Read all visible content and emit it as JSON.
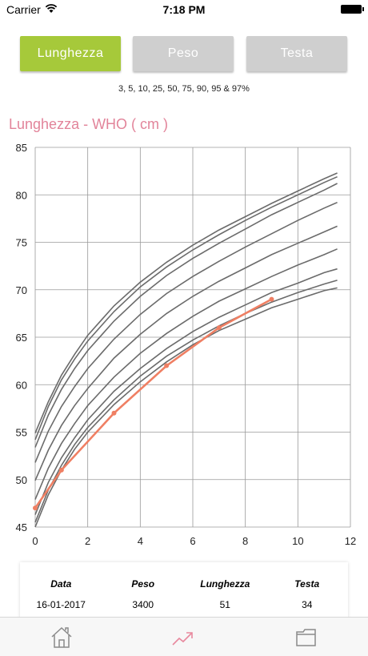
{
  "status": {
    "carrier": "Carrier",
    "time": "7:18 PM"
  },
  "tabs": [
    {
      "label": "Lunghezza",
      "active": true
    },
    {
      "label": "Peso",
      "active": false
    },
    {
      "label": "Testa",
      "active": false
    }
  ],
  "percentiles_text": "3, 5, 10, 25, 50, 75, 90, 95 & 97%",
  "chart_title": "Lunghezza - WHO ( cm )",
  "colors": {
    "accent": "#a6c93a",
    "title": "#e2849a",
    "measure": "#ef7f63",
    "curves": "#6b6b6b",
    "inactive_tab": "#cfcfcf"
  },
  "chart_data": {
    "type": "line",
    "title": "Lunghezza - WHO ( cm )",
    "xlabel": "",
    "ylabel": "",
    "xlim": [
      0,
      12
    ],
    "ylim": [
      45,
      85
    ],
    "x_ticks": [
      0,
      2,
      4,
      6,
      8,
      10,
      12
    ],
    "y_ticks": [
      45,
      50,
      55,
      60,
      65,
      70,
      75,
      80,
      85
    ],
    "grid": true,
    "percentile_x": [
      0,
      0.5,
      1,
      1.5,
      2,
      3,
      4,
      5,
      6,
      7,
      8,
      9,
      10,
      11,
      11.5
    ],
    "percentile_series": [
      {
        "name": "3%",
        "values": [
          45.0,
          48.4,
          51.0,
          53.2,
          55.0,
          57.9,
          60.3,
          62.4,
          64.2,
          65.7,
          66.9,
          68.1,
          69.0,
          69.9,
          70.2
        ]
      },
      {
        "name": "5%",
        "values": [
          45.5,
          48.9,
          51.5,
          53.7,
          55.5,
          58.4,
          60.9,
          63.0,
          64.7,
          66.2,
          67.5,
          68.7,
          69.7,
          70.6,
          71.0
        ]
      },
      {
        "name": "10%",
        "values": [
          46.3,
          49.7,
          52.3,
          54.4,
          56.3,
          59.3,
          61.7,
          63.8,
          65.6,
          67.1,
          68.4,
          69.7,
          70.7,
          71.8,
          72.2
        ]
      },
      {
        "name": "25%",
        "values": [
          47.9,
          51.2,
          53.8,
          55.9,
          57.8,
          60.8,
          63.3,
          65.4,
          67.2,
          68.8,
          70.1,
          71.4,
          72.6,
          73.7,
          74.3
        ]
      },
      {
        "name": "50%",
        "values": [
          49.9,
          53.1,
          55.7,
          57.8,
          59.6,
          62.8,
          65.3,
          67.5,
          69.3,
          70.9,
          72.3,
          73.7,
          74.9,
          76.1,
          76.7
        ]
      },
      {
        "name": "75%",
        "values": [
          51.8,
          55.1,
          57.7,
          59.8,
          61.7,
          64.8,
          67.4,
          69.6,
          71.4,
          73.0,
          74.5,
          75.9,
          77.3,
          78.6,
          79.2
        ]
      },
      {
        "name": "90%",
        "values": [
          53.4,
          56.8,
          59.5,
          61.7,
          63.6,
          66.7,
          69.3,
          71.5,
          73.3,
          74.9,
          76.4,
          77.9,
          79.2,
          80.5,
          81.2
        ]
      },
      {
        "name": "95%",
        "values": [
          54.2,
          57.7,
          60.5,
          62.7,
          64.6,
          67.7,
          70.3,
          72.4,
          74.2,
          75.8,
          77.3,
          78.7,
          80.0,
          81.3,
          81.9
        ]
      },
      {
        "name": "97%",
        "values": [
          54.9,
          58.2,
          61.0,
          63.2,
          65.2,
          68.3,
          70.8,
          72.9,
          74.7,
          76.3,
          77.7,
          79.1,
          80.4,
          81.7,
          82.3
        ]
      }
    ],
    "measurements": {
      "x": [
        0,
        1,
        3,
        5,
        7,
        9
      ],
      "values": [
        47,
        51,
        57,
        62,
        66,
        69
      ]
    }
  },
  "table": {
    "headers": [
      "Data",
      "Peso",
      "Lunghezza",
      "Testa"
    ],
    "row": [
      "16-01-2017",
      "3400",
      "51",
      "34"
    ]
  },
  "tabbar": {
    "items": [
      "home-icon",
      "chart-icon",
      "folder-icon"
    ]
  }
}
